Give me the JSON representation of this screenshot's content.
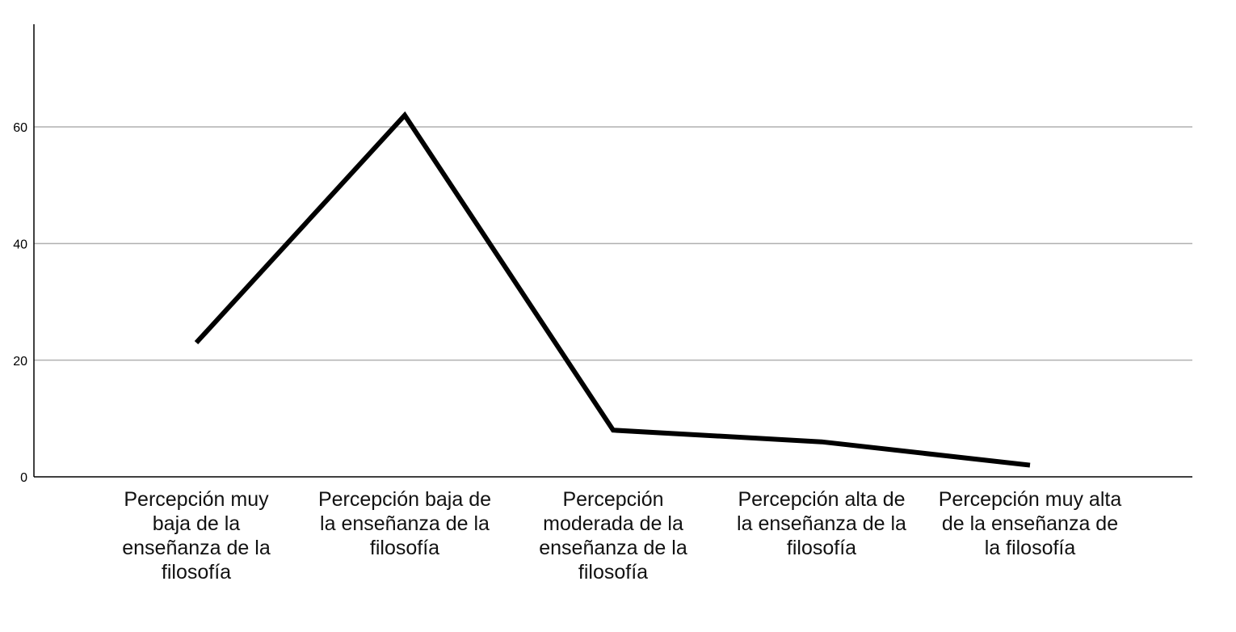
{
  "chart_data": {
    "type": "line",
    "categories": [
      "Percepción muy baja de la enseñanza de la filosofía",
      "Percepción baja de la enseñanza de la filosofía",
      "Percepción moderada de la enseñanza de la filosofía",
      "Percepción alta de la enseñanza de la filosofía",
      "Percepción muy alta de la enseñanza de la filosofía"
    ],
    "values": [
      23,
      62,
      8,
      6,
      2
    ],
    "color": "#000000",
    "ylim": [
      0,
      77.6
    ],
    "yticks": [
      0,
      20,
      40,
      60
    ],
    "grid": true
  }
}
